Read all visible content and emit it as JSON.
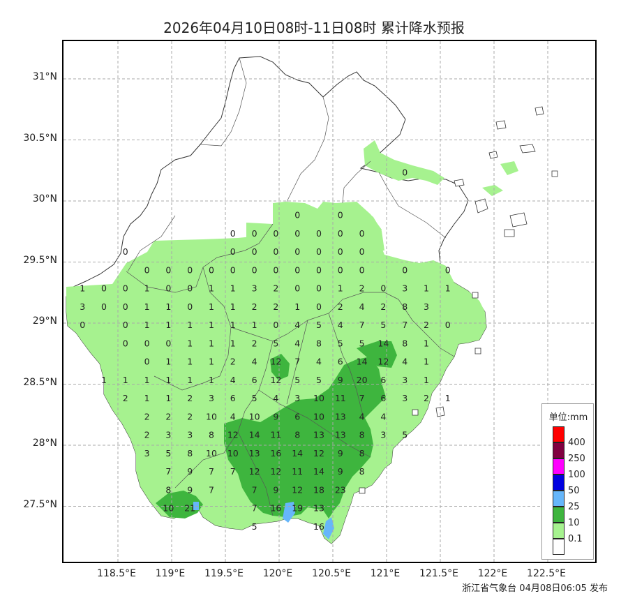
{
  "title": "2026年04月10日08时-11日08时 累计降水预报",
  "footer": "浙江省气象台 04月08日06:05 发布",
  "lat_labels": [
    "31°N",
    "30.5°N",
    "30°N",
    "29.5°N",
    "29°N",
    "28.5°N",
    "28°N",
    "27.5°N"
  ],
  "lon_labels": [
    "118.5°E",
    "119°E",
    "119.5°E",
    "120°E",
    "120.5°E",
    "121°E",
    "121.5°E",
    "122°E",
    "122.5°E"
  ],
  "legend": {
    "title": "单位:mm",
    "entries": [
      {
        "label": "400",
        "color": "#ff0000"
      },
      {
        "label": "250",
        "color": "#800040"
      },
      {
        "label": "100",
        "color": "#ff00ff"
      },
      {
        "label": "50",
        "color": "#0000e0"
      },
      {
        "label": "25",
        "color": "#66b6fa"
      },
      {
        "label": "10",
        "color": "#3eb53e"
      },
      {
        "label": "0.1",
        "color": "#a6f28f"
      },
      {
        "label": "",
        "color": "#ffffff"
      }
    ]
  },
  "chart_data": {
    "type": "map",
    "grid": "on",
    "lat_range": [
      27.0,
      31.3
    ],
    "lon_range": [
      118.0,
      122.9
    ],
    "unit": "mm",
    "station_values": [
      {
        "lon": 119.57,
        "lat": 29.73,
        "v": "0"
      },
      {
        "lon": 119.77,
        "lat": 29.73,
        "v": "0"
      },
      {
        "lon": 119.97,
        "lat": 29.73,
        "v": "0"
      },
      {
        "lon": 120.17,
        "lat": 29.73,
        "v": "0"
      },
      {
        "lon": 120.37,
        "lat": 29.73,
        "v": "0"
      },
      {
        "lon": 120.57,
        "lat": 29.73,
        "v": "0"
      },
      {
        "lon": 120.77,
        "lat": 29.73,
        "v": "0"
      },
      {
        "lon": 120.17,
        "lat": 29.88,
        "v": "0"
      },
      {
        "lon": 120.57,
        "lat": 29.88,
        "v": "0"
      },
      {
        "lon": 121.17,
        "lat": 30.23,
        "v": "0"
      },
      {
        "lon": 119.57,
        "lat": 29.58,
        "v": "0"
      },
      {
        "lon": 119.77,
        "lat": 29.58,
        "v": "0"
      },
      {
        "lon": 119.97,
        "lat": 29.58,
        "v": "0"
      },
      {
        "lon": 120.17,
        "lat": 29.58,
        "v": "0"
      },
      {
        "lon": 120.37,
        "lat": 29.58,
        "v": "0"
      },
      {
        "lon": 120.57,
        "lat": 29.58,
        "v": "0"
      },
      {
        "lon": 120.77,
        "lat": 29.58,
        "v": "0"
      },
      {
        "lon": 118.57,
        "lat": 29.58,
        "v": "0"
      },
      {
        "lon": 118.77,
        "lat": 29.43,
        "v": "0"
      },
      {
        "lon": 118.97,
        "lat": 29.43,
        "v": "0"
      },
      {
        "lon": 119.17,
        "lat": 29.43,
        "v": "0"
      },
      {
        "lon": 119.37,
        "lat": 29.43,
        "v": "0"
      },
      {
        "lon": 119.57,
        "lat": 29.43,
        "v": "0"
      },
      {
        "lon": 119.77,
        "lat": 29.43,
        "v": "0"
      },
      {
        "lon": 119.97,
        "lat": 29.43,
        "v": "0"
      },
      {
        "lon": 120.17,
        "lat": 29.43,
        "v": "0"
      },
      {
        "lon": 120.37,
        "lat": 29.43,
        "v": "0"
      },
      {
        "lon": 120.57,
        "lat": 29.43,
        "v": "0"
      },
      {
        "lon": 120.77,
        "lat": 29.43,
        "v": "0"
      },
      {
        "lon": 121.17,
        "lat": 29.43,
        "v": "0"
      },
      {
        "lon": 121.57,
        "lat": 29.43,
        "v": "0"
      },
      {
        "lon": 118.17,
        "lat": 29.28,
        "v": "1"
      },
      {
        "lon": 118.37,
        "lat": 29.28,
        "v": "0"
      },
      {
        "lon": 118.57,
        "lat": 29.28,
        "v": "0"
      },
      {
        "lon": 118.77,
        "lat": 29.28,
        "v": "1"
      },
      {
        "lon": 118.97,
        "lat": 29.28,
        "v": "0"
      },
      {
        "lon": 119.17,
        "lat": 29.28,
        "v": "0"
      },
      {
        "lon": 119.37,
        "lat": 29.28,
        "v": "1"
      },
      {
        "lon": 119.57,
        "lat": 29.28,
        "v": "1"
      },
      {
        "lon": 119.77,
        "lat": 29.28,
        "v": "3"
      },
      {
        "lon": 119.97,
        "lat": 29.28,
        "v": "2"
      },
      {
        "lon": 120.17,
        "lat": 29.28,
        "v": "0"
      },
      {
        "lon": 120.37,
        "lat": 29.28,
        "v": "0"
      },
      {
        "lon": 120.57,
        "lat": 29.28,
        "v": "1"
      },
      {
        "lon": 120.77,
        "lat": 29.28,
        "v": "2"
      },
      {
        "lon": 120.97,
        "lat": 29.28,
        "v": "0"
      },
      {
        "lon": 121.17,
        "lat": 29.28,
        "v": "3"
      },
      {
        "lon": 121.37,
        "lat": 29.28,
        "v": "1"
      },
      {
        "lon": 121.57,
        "lat": 29.28,
        "v": "1"
      },
      {
        "lon": 118.17,
        "lat": 29.13,
        "v": "3"
      },
      {
        "lon": 118.37,
        "lat": 29.13,
        "v": "0"
      },
      {
        "lon": 118.57,
        "lat": 29.13,
        "v": "0"
      },
      {
        "lon": 118.77,
        "lat": 29.13,
        "v": "1"
      },
      {
        "lon": 118.97,
        "lat": 29.13,
        "v": "1"
      },
      {
        "lon": 119.17,
        "lat": 29.13,
        "v": "0"
      },
      {
        "lon": 119.37,
        "lat": 29.13,
        "v": "1"
      },
      {
        "lon": 119.57,
        "lat": 29.13,
        "v": "1"
      },
      {
        "lon": 119.77,
        "lat": 29.13,
        "v": "2"
      },
      {
        "lon": 119.97,
        "lat": 29.13,
        "v": "2"
      },
      {
        "lon": 120.17,
        "lat": 29.13,
        "v": "1"
      },
      {
        "lon": 120.37,
        "lat": 29.13,
        "v": "0"
      },
      {
        "lon": 120.57,
        "lat": 29.13,
        "v": "2"
      },
      {
        "lon": 120.77,
        "lat": 29.13,
        "v": "4"
      },
      {
        "lon": 120.97,
        "lat": 29.13,
        "v": "2"
      },
      {
        "lon": 121.17,
        "lat": 29.13,
        "v": "8"
      },
      {
        "lon": 121.37,
        "lat": 29.13,
        "v": "3"
      },
      {
        "lon": 118.17,
        "lat": 28.98,
        "v": "0"
      },
      {
        "lon": 118.57,
        "lat": 28.98,
        "v": "0"
      },
      {
        "lon": 118.77,
        "lat": 28.98,
        "v": "1"
      },
      {
        "lon": 118.97,
        "lat": 28.98,
        "v": "1"
      },
      {
        "lon": 119.17,
        "lat": 28.98,
        "v": "1"
      },
      {
        "lon": 119.37,
        "lat": 28.98,
        "v": "1"
      },
      {
        "lon": 119.57,
        "lat": 28.98,
        "v": "1"
      },
      {
        "lon": 119.77,
        "lat": 28.98,
        "v": "1"
      },
      {
        "lon": 119.97,
        "lat": 28.98,
        "v": "0"
      },
      {
        "lon": 120.17,
        "lat": 28.98,
        "v": "4"
      },
      {
        "lon": 120.37,
        "lat": 28.98,
        "v": "5"
      },
      {
        "lon": 120.57,
        "lat": 28.98,
        "v": "4"
      },
      {
        "lon": 120.77,
        "lat": 28.98,
        "v": "7"
      },
      {
        "lon": 120.97,
        "lat": 28.98,
        "v": "5"
      },
      {
        "lon": 121.17,
        "lat": 28.98,
        "v": "7"
      },
      {
        "lon": 121.37,
        "lat": 28.98,
        "v": "2"
      },
      {
        "lon": 121.57,
        "lat": 28.98,
        "v": "0"
      },
      {
        "lon": 118.57,
        "lat": 28.83,
        "v": "0"
      },
      {
        "lon": 118.77,
        "lat": 28.83,
        "v": "0"
      },
      {
        "lon": 118.97,
        "lat": 28.83,
        "v": "0"
      },
      {
        "lon": 119.17,
        "lat": 28.83,
        "v": "1"
      },
      {
        "lon": 119.37,
        "lat": 28.83,
        "v": "1"
      },
      {
        "lon": 119.57,
        "lat": 28.83,
        "v": "1"
      },
      {
        "lon": 119.77,
        "lat": 28.83,
        "v": "2"
      },
      {
        "lon": 119.97,
        "lat": 28.83,
        "v": "5"
      },
      {
        "lon": 120.17,
        "lat": 28.83,
        "v": "4"
      },
      {
        "lon": 120.37,
        "lat": 28.83,
        "v": "8"
      },
      {
        "lon": 120.57,
        "lat": 28.83,
        "v": "5"
      },
      {
        "lon": 120.77,
        "lat": 28.83,
        "v": "5"
      },
      {
        "lon": 120.97,
        "lat": 28.83,
        "v": "14"
      },
      {
        "lon": 121.17,
        "lat": 28.83,
        "v": "8"
      },
      {
        "lon": 121.37,
        "lat": 28.83,
        "v": "1"
      },
      {
        "lon": 118.77,
        "lat": 28.68,
        "v": "0"
      },
      {
        "lon": 118.97,
        "lat": 28.68,
        "v": "1"
      },
      {
        "lon": 119.17,
        "lat": 28.68,
        "v": "1"
      },
      {
        "lon": 119.37,
        "lat": 28.68,
        "v": "1"
      },
      {
        "lon": 119.57,
        "lat": 28.68,
        "v": "2"
      },
      {
        "lon": 119.77,
        "lat": 28.68,
        "v": "4"
      },
      {
        "lon": 119.97,
        "lat": 28.68,
        "v": "12"
      },
      {
        "lon": 120.17,
        "lat": 28.68,
        "v": "7"
      },
      {
        "lon": 120.37,
        "lat": 28.68,
        "v": "4"
      },
      {
        "lon": 120.57,
        "lat": 28.68,
        "v": "6"
      },
      {
        "lon": 120.77,
        "lat": 28.68,
        "v": "14"
      },
      {
        "lon": 120.97,
        "lat": 28.68,
        "v": "12"
      },
      {
        "lon": 121.17,
        "lat": 28.68,
        "v": "4"
      },
      {
        "lon": 121.37,
        "lat": 28.68,
        "v": "1"
      },
      {
        "lon": 118.37,
        "lat": 28.53,
        "v": "1"
      },
      {
        "lon": 118.57,
        "lat": 28.53,
        "v": "1"
      },
      {
        "lon": 118.77,
        "lat": 28.53,
        "v": "1"
      },
      {
        "lon": 118.97,
        "lat": 28.53,
        "v": "1"
      },
      {
        "lon": 119.17,
        "lat": 28.53,
        "v": "1"
      },
      {
        "lon": 119.37,
        "lat": 28.53,
        "v": "1"
      },
      {
        "lon": 119.57,
        "lat": 28.53,
        "v": "4"
      },
      {
        "lon": 119.77,
        "lat": 28.53,
        "v": "6"
      },
      {
        "lon": 119.97,
        "lat": 28.53,
        "v": "12"
      },
      {
        "lon": 120.17,
        "lat": 28.53,
        "v": "5"
      },
      {
        "lon": 120.37,
        "lat": 28.53,
        "v": "5"
      },
      {
        "lon": 120.57,
        "lat": 28.53,
        "v": "9"
      },
      {
        "lon": 120.77,
        "lat": 28.53,
        "v": "20"
      },
      {
        "lon": 120.97,
        "lat": 28.53,
        "v": "6"
      },
      {
        "lon": 121.17,
        "lat": 28.53,
        "v": "3"
      },
      {
        "lon": 121.37,
        "lat": 28.53,
        "v": "1"
      },
      {
        "lon": 118.57,
        "lat": 28.38,
        "v": "2"
      },
      {
        "lon": 118.77,
        "lat": 28.38,
        "v": "1"
      },
      {
        "lon": 118.97,
        "lat": 28.38,
        "v": "1"
      },
      {
        "lon": 119.17,
        "lat": 28.38,
        "v": "2"
      },
      {
        "lon": 119.37,
        "lat": 28.38,
        "v": "3"
      },
      {
        "lon": 119.57,
        "lat": 28.38,
        "v": "6"
      },
      {
        "lon": 119.77,
        "lat": 28.38,
        "v": "5"
      },
      {
        "lon": 119.97,
        "lat": 28.38,
        "v": "4"
      },
      {
        "lon": 120.17,
        "lat": 28.38,
        "v": "3"
      },
      {
        "lon": 120.37,
        "lat": 28.38,
        "v": "10"
      },
      {
        "lon": 120.57,
        "lat": 28.38,
        "v": "11"
      },
      {
        "lon": 120.77,
        "lat": 28.38,
        "v": "7"
      },
      {
        "lon": 120.97,
        "lat": 28.38,
        "v": "6"
      },
      {
        "lon": 121.17,
        "lat": 28.38,
        "v": "3"
      },
      {
        "lon": 121.37,
        "lat": 28.38,
        "v": "2"
      },
      {
        "lon": 121.57,
        "lat": 28.38,
        "v": "1"
      },
      {
        "lon": 118.77,
        "lat": 28.23,
        "v": "2"
      },
      {
        "lon": 118.97,
        "lat": 28.23,
        "v": "2"
      },
      {
        "lon": 119.17,
        "lat": 28.23,
        "v": "2"
      },
      {
        "lon": 119.37,
        "lat": 28.23,
        "v": "10"
      },
      {
        "lon": 119.57,
        "lat": 28.23,
        "v": "4"
      },
      {
        "lon": 119.77,
        "lat": 28.23,
        "v": "10"
      },
      {
        "lon": 119.97,
        "lat": 28.23,
        "v": "9"
      },
      {
        "lon": 120.17,
        "lat": 28.23,
        "v": "6"
      },
      {
        "lon": 120.37,
        "lat": 28.23,
        "v": "10"
      },
      {
        "lon": 120.57,
        "lat": 28.23,
        "v": "13"
      },
      {
        "lon": 120.77,
        "lat": 28.23,
        "v": "4"
      },
      {
        "lon": 120.97,
        "lat": 28.23,
        "v": "4"
      },
      {
        "lon": 118.77,
        "lat": 28.08,
        "v": "2"
      },
      {
        "lon": 118.97,
        "lat": 28.08,
        "v": "3"
      },
      {
        "lon": 119.17,
        "lat": 28.08,
        "v": "3"
      },
      {
        "lon": 119.37,
        "lat": 28.08,
        "v": "8"
      },
      {
        "lon": 119.57,
        "lat": 28.08,
        "v": "12"
      },
      {
        "lon": 119.77,
        "lat": 28.08,
        "v": "14"
      },
      {
        "lon": 119.97,
        "lat": 28.08,
        "v": "11"
      },
      {
        "lon": 120.17,
        "lat": 28.08,
        "v": "8"
      },
      {
        "lon": 120.37,
        "lat": 28.08,
        "v": "13"
      },
      {
        "lon": 120.57,
        "lat": 28.08,
        "v": "13"
      },
      {
        "lon": 120.77,
        "lat": 28.08,
        "v": "8"
      },
      {
        "lon": 120.97,
        "lat": 28.08,
        "v": "3"
      },
      {
        "lon": 121.17,
        "lat": 28.08,
        "v": "5"
      },
      {
        "lon": 118.77,
        "lat": 27.93,
        "v": "3"
      },
      {
        "lon": 118.97,
        "lat": 27.93,
        "v": "5"
      },
      {
        "lon": 119.17,
        "lat": 27.93,
        "v": "8"
      },
      {
        "lon": 119.37,
        "lat": 27.93,
        "v": "10"
      },
      {
        "lon": 119.57,
        "lat": 27.93,
        "v": "10"
      },
      {
        "lon": 119.77,
        "lat": 27.93,
        "v": "13"
      },
      {
        "lon": 119.97,
        "lat": 27.93,
        "v": "16"
      },
      {
        "lon": 120.17,
        "lat": 27.93,
        "v": "14"
      },
      {
        "lon": 120.37,
        "lat": 27.93,
        "v": "12"
      },
      {
        "lon": 120.57,
        "lat": 27.93,
        "v": "9"
      },
      {
        "lon": 120.77,
        "lat": 27.93,
        "v": "8"
      },
      {
        "lon": 118.97,
        "lat": 27.78,
        "v": "7"
      },
      {
        "lon": 119.17,
        "lat": 27.78,
        "v": "9"
      },
      {
        "lon": 119.37,
        "lat": 27.78,
        "v": "7"
      },
      {
        "lon": 119.57,
        "lat": 27.78,
        "v": "7"
      },
      {
        "lon": 119.77,
        "lat": 27.78,
        "v": "12"
      },
      {
        "lon": 119.97,
        "lat": 27.78,
        "v": "12"
      },
      {
        "lon": 120.17,
        "lat": 27.78,
        "v": "11"
      },
      {
        "lon": 120.37,
        "lat": 27.78,
        "v": "14"
      },
      {
        "lon": 120.57,
        "lat": 27.78,
        "v": "9"
      },
      {
        "lon": 120.77,
        "lat": 27.78,
        "v": "8"
      },
      {
        "lon": 118.97,
        "lat": 27.63,
        "v": "8"
      },
      {
        "lon": 119.17,
        "lat": 27.63,
        "v": "9"
      },
      {
        "lon": 119.37,
        "lat": 27.63,
        "v": "7"
      },
      {
        "lon": 119.77,
        "lat": 27.63,
        "v": "7"
      },
      {
        "lon": 119.97,
        "lat": 27.63,
        "v": "9"
      },
      {
        "lon": 120.17,
        "lat": 27.63,
        "v": "12"
      },
      {
        "lon": 120.37,
        "lat": 27.63,
        "v": "18"
      },
      {
        "lon": 120.57,
        "lat": 27.63,
        "v": "23"
      },
      {
        "lon": 118.97,
        "lat": 27.48,
        "v": "10"
      },
      {
        "lon": 119.17,
        "lat": 27.48,
        "v": "21"
      },
      {
        "lon": 119.77,
        "lat": 27.48,
        "v": "7"
      },
      {
        "lon": 119.97,
        "lat": 27.48,
        "v": "16"
      },
      {
        "lon": 120.17,
        "lat": 27.48,
        "v": "19"
      },
      {
        "lon": 120.37,
        "lat": 27.48,
        "v": "13"
      },
      {
        "lon": 119.77,
        "lat": 27.33,
        "v": "5"
      },
      {
        "lon": 120.37,
        "lat": 27.33,
        "v": "16"
      }
    ]
  }
}
